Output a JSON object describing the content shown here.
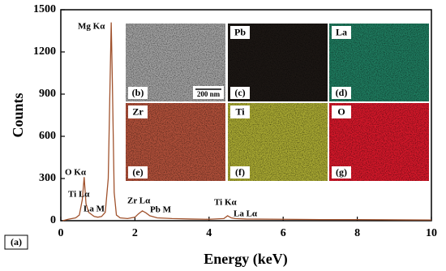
{
  "chart_data": {
    "type": "line",
    "x_label": "Energy (keV)",
    "y_label": "Counts",
    "x": [
      0.05,
      0.2,
      0.4,
      0.5,
      0.58,
      0.63,
      0.68,
      0.75,
      0.8,
      0.9,
      1.0,
      1.1,
      1.2,
      1.28,
      1.33,
      1.36,
      1.39,
      1.44,
      1.5,
      1.6,
      1.8,
      2.0,
      2.1,
      2.2,
      2.3,
      2.4,
      2.6,
      3.0,
      3.5,
      4.0,
      4.4,
      4.5,
      4.6,
      4.7,
      5.0,
      6.0,
      7.0,
      8.0,
      9.0,
      10.0
    ],
    "series": [
      {
        "color": "#a0522d",
        "values": [
          0,
          10,
          20,
          40,
          150,
          310,
          120,
          60,
          50,
          30,
          25,
          30,
          60,
          300,
          1000,
          1410,
          1000,
          200,
          40,
          20,
          15,
          25,
          50,
          70,
          55,
          35,
          20,
          15,
          12,
          10,
          15,
          35,
          20,
          15,
          12,
          10,
          8,
          8,
          6,
          5
        ]
      }
    ],
    "xlim": [
      0,
      10
    ],
    "ylim": [
      0,
      1500
    ],
    "xticks": [
      0,
      2,
      4,
      6,
      8,
      10
    ],
    "yticks": [
      0,
      300,
      600,
      900,
      1200,
      1500
    ],
    "annotations": [
      "Mg Kα",
      "O Kα",
      "Ti Lα",
      "La M",
      "Zr Lα",
      "Pb M",
      "Ti Kα",
      "La Lα"
    ],
    "panel_label": "(a)"
  },
  "insets": [
    {
      "tag": "(b)",
      "scale_bar": "200 nm",
      "color": "#a0a0a0"
    },
    {
      "tag": "(c)",
      "element": "Pb",
      "color": "#1c1714"
    },
    {
      "tag": "(d)",
      "element": "La",
      "color": "#1f7a5e"
    },
    {
      "tag": "(e)",
      "element": "Zr",
      "color": "#b0503a"
    },
    {
      "tag": "(f)",
      "element": "Ti",
      "color": "#a8a832"
    },
    {
      "tag": "(g)",
      "element": "O",
      "color": "#d4182a"
    }
  ]
}
